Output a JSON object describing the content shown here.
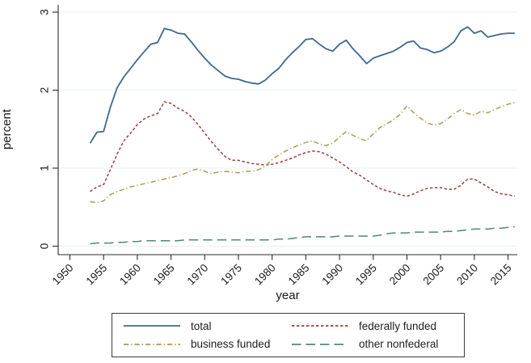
{
  "figure": {
    "background": "#ffffff",
    "axis_color": "#2b2b2b",
    "grid_color": "#e7efee",
    "text_color": "#1a1a1a"
  },
  "chart_data": {
    "type": "line",
    "title": "",
    "xlabel": "year",
    "ylabel": "percent",
    "xlim": [
      1948,
      2017.5
    ],
    "ylim": [
      0,
      3
    ],
    "x_ticks": [
      1950,
      1955,
      1960,
      1965,
      1970,
      1975,
      1980,
      1985,
      1990,
      1995,
      2000,
      2005,
      2010,
      2015
    ],
    "y_ticks": [
      0,
      1,
      2,
      3
    ],
    "grid": true,
    "legend_position": "bottom",
    "x": [
      1953,
      1954,
      1955,
      1956,
      1957,
      1958,
      1959,
      1960,
      1961,
      1962,
      1963,
      1964,
      1965,
      1966,
      1967,
      1968,
      1969,
      1970,
      1971,
      1972,
      1973,
      1974,
      1975,
      1976,
      1977,
      1978,
      1979,
      1980,
      1981,
      1982,
      1983,
      1984,
      1985,
      1986,
      1987,
      1988,
      1989,
      1990,
      1991,
      1992,
      1993,
      1994,
      1995,
      1996,
      1997,
      1998,
      1999,
      2000,
      2001,
      2002,
      2003,
      2004,
      2005,
      2006,
      2007,
      2008,
      2009,
      2010,
      2011,
      2012,
      2013,
      2014,
      2015,
      2016
    ],
    "series": [
      {
        "name": "total",
        "color": "#3f6890",
        "dash": "solid",
        "values": [
          1.32,
          1.46,
          1.47,
          1.78,
          2.03,
          2.17,
          2.28,
          2.39,
          2.49,
          2.59,
          2.61,
          2.79,
          2.77,
          2.73,
          2.72,
          2.62,
          2.51,
          2.41,
          2.32,
          2.25,
          2.18,
          2.15,
          2.14,
          2.11,
          2.09,
          2.08,
          2.13,
          2.21,
          2.28,
          2.39,
          2.48,
          2.56,
          2.65,
          2.66,
          2.59,
          2.53,
          2.5,
          2.59,
          2.64,
          2.53,
          2.44,
          2.34,
          2.41,
          2.44,
          2.47,
          2.5,
          2.55,
          2.61,
          2.63,
          2.54,
          2.52,
          2.48,
          2.5,
          2.55,
          2.62,
          2.76,
          2.81,
          2.73,
          2.76,
          2.68,
          2.7,
          2.72,
          2.73,
          2.73
        ]
      },
      {
        "name": "federally funded",
        "color": "#9d3d3c",
        "dash": "short-dash",
        "values": [
          0.7,
          0.76,
          0.79,
          0.98,
          1.18,
          1.35,
          1.45,
          1.56,
          1.63,
          1.67,
          1.7,
          1.85,
          1.83,
          1.77,
          1.73,
          1.66,
          1.56,
          1.45,
          1.34,
          1.24,
          1.15,
          1.1,
          1.1,
          1.08,
          1.06,
          1.05,
          1.04,
          1.05,
          1.07,
          1.1,
          1.13,
          1.17,
          1.2,
          1.22,
          1.21,
          1.18,
          1.13,
          1.08,
          1.02,
          0.95,
          0.91,
          0.85,
          0.79,
          0.74,
          0.71,
          0.69,
          0.66,
          0.64,
          0.67,
          0.71,
          0.74,
          0.75,
          0.75,
          0.73,
          0.73,
          0.78,
          0.86,
          0.86,
          0.81,
          0.76,
          0.7,
          0.67,
          0.66,
          0.64
        ]
      },
      {
        "name": "business funded",
        "color": "#a89c52",
        "dash": "dash-dot",
        "values": [
          0.57,
          0.56,
          0.58,
          0.66,
          0.7,
          0.73,
          0.76,
          0.78,
          0.8,
          0.82,
          0.84,
          0.86,
          0.88,
          0.9,
          0.93,
          0.97,
          0.99,
          0.96,
          0.93,
          0.95,
          0.96,
          0.95,
          0.94,
          0.96,
          0.96,
          0.98,
          1.03,
          1.11,
          1.17,
          1.22,
          1.26,
          1.3,
          1.33,
          1.35,
          1.31,
          1.29,
          1.32,
          1.4,
          1.47,
          1.42,
          1.38,
          1.35,
          1.44,
          1.52,
          1.57,
          1.62,
          1.69,
          1.8,
          1.71,
          1.64,
          1.58,
          1.55,
          1.57,
          1.63,
          1.7,
          1.75,
          1.7,
          1.68,
          1.73,
          1.71,
          1.75,
          1.79,
          1.82,
          1.84
        ]
      },
      {
        "name": "other nonfederal",
        "color": "#4f877c",
        "dash": "long-dash",
        "values": [
          0.03,
          0.04,
          0.04,
          0.04,
          0.05,
          0.05,
          0.06,
          0.06,
          0.07,
          0.07,
          0.07,
          0.07,
          0.07,
          0.07,
          0.08,
          0.08,
          0.08,
          0.08,
          0.08,
          0.08,
          0.08,
          0.08,
          0.08,
          0.08,
          0.08,
          0.08,
          0.08,
          0.08,
          0.09,
          0.09,
          0.1,
          0.11,
          0.12,
          0.12,
          0.12,
          0.12,
          0.12,
          0.13,
          0.13,
          0.13,
          0.13,
          0.13,
          0.13,
          0.14,
          0.16,
          0.17,
          0.17,
          0.17,
          0.18,
          0.18,
          0.18,
          0.18,
          0.18,
          0.19,
          0.19,
          0.2,
          0.21,
          0.22,
          0.22,
          0.22,
          0.23,
          0.23,
          0.24,
          0.25
        ]
      }
    ]
  }
}
